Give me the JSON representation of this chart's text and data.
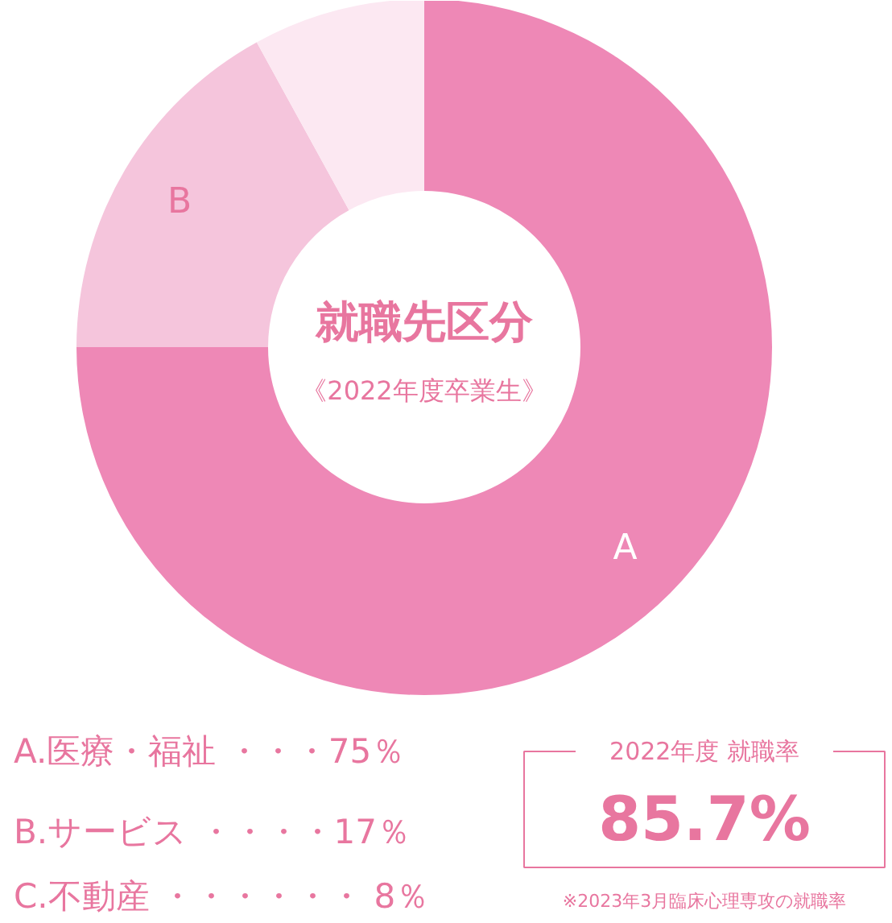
{
  "chart_data": {
    "type": "donut",
    "title": "就職先区分",
    "subtitle": "《2022年度卒業生》",
    "categories": [
      "A",
      "B",
      null
    ],
    "values": [
      75,
      17,
      8
    ],
    "colors": [
      "#ee88b6",
      "#f5c5dc",
      "#fce8f2"
    ],
    "annotations": [
      "A.医療・福祉 ・・・75％",
      "B.サービス ・・・・17％",
      "C.不動産 ・・・・・・  8％",
      "2022年度 就職率",
      "85.7%",
      "※2023年3月臨床心理専攻の就職率"
    ]
  }
}
